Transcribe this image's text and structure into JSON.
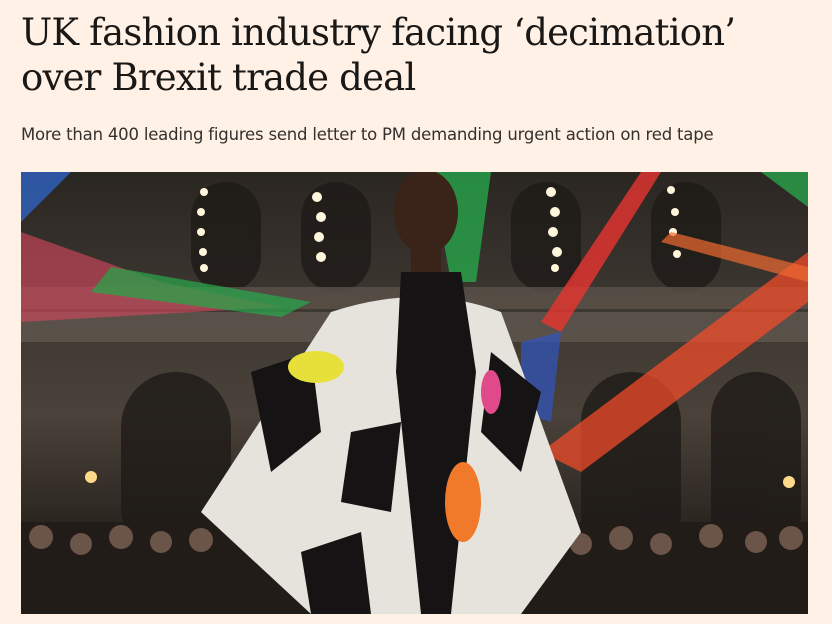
{
  "article": {
    "headline": "UK fashion industry facing ‘decimation’ over Brexit trade deal",
    "standfirst": "More than 400 leading figures send letter to PM demanding urgent action on red tape"
  },
  "image": {
    "description_icon": "photo-runway-model"
  },
  "colors": {
    "background": "#fff1e5",
    "headline": "#1a1817",
    "standfirst": "#33302e"
  }
}
